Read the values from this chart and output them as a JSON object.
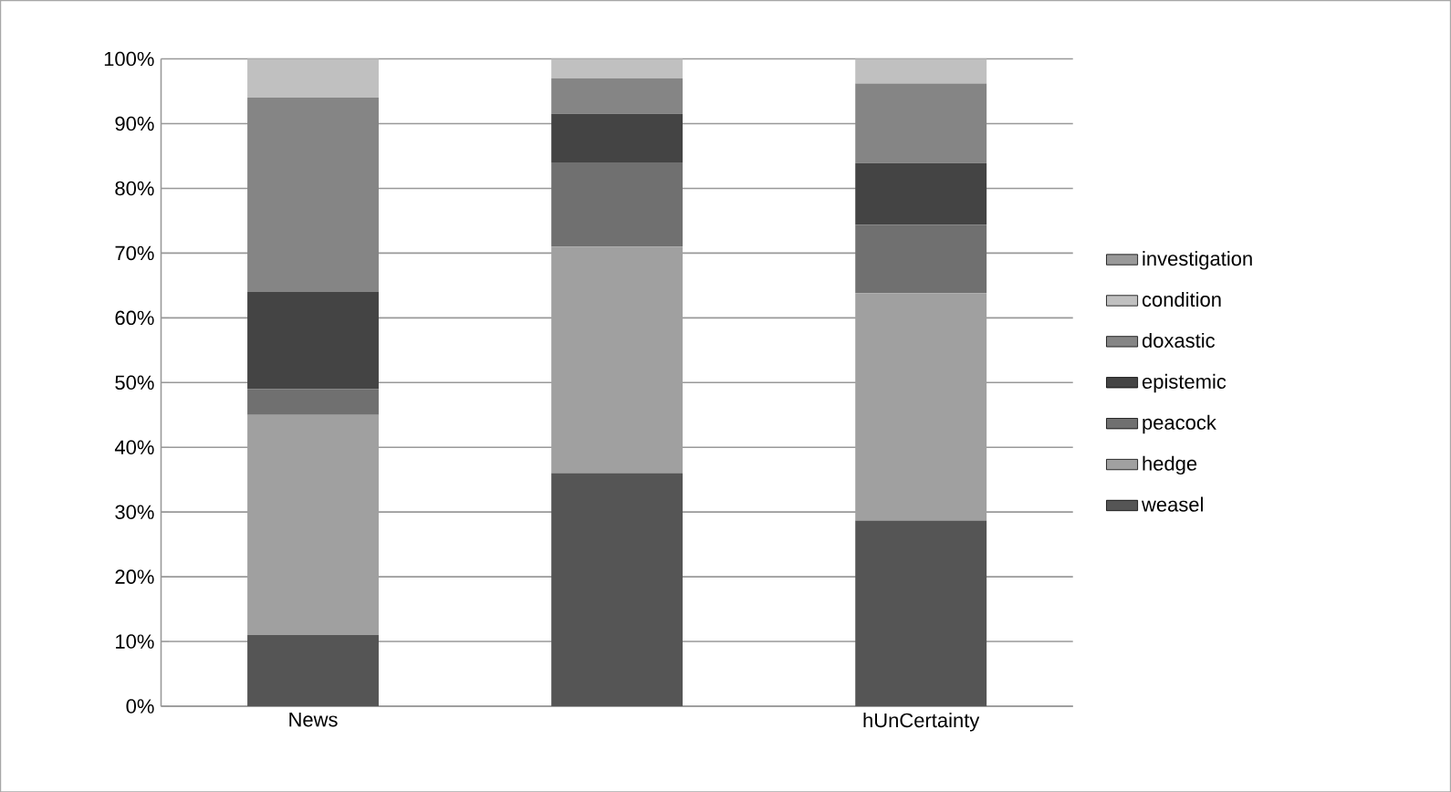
{
  "chart_data": {
    "type": "bar",
    "stacked": true,
    "categories": [
      "News",
      null,
      "hUnCertainty"
    ],
    "series": [
      {
        "name": "weasel",
        "color": "#555555",
        "values": [
          11,
          36,
          28.7
        ]
      },
      {
        "name": "hedge",
        "color": "#a0a0a0",
        "values": [
          34,
          35,
          35.1
        ]
      },
      {
        "name": "peacock",
        "color": "#707070",
        "values": [
          4,
          13,
          10.6
        ]
      },
      {
        "name": "epistemic",
        "color": "#444444",
        "values": [
          15,
          7.5,
          9.5
        ]
      },
      {
        "name": "doxastic",
        "color": "#858585",
        "values": [
          30,
          5.5,
          12.3
        ]
      },
      {
        "name": "condition",
        "color": "#c0c0c0",
        "values": [
          6,
          3,
          3.8
        ]
      },
      {
        "name": "investigation",
        "color": "#999999",
        "values": [
          0,
          0,
          0
        ]
      }
    ],
    "ylim": [
      0,
      100
    ],
    "yticks": [
      {
        "value": 0,
        "label": "0%"
      },
      {
        "value": 10,
        "label": "10%"
      },
      {
        "value": 20,
        "label": "20%"
      },
      {
        "value": 30,
        "label": "30%"
      },
      {
        "value": 40,
        "label": "40%"
      },
      {
        "value": 50,
        "label": "50%"
      },
      {
        "value": 60,
        "label": "60%"
      },
      {
        "value": 70,
        "label": "70%"
      },
      {
        "value": 80,
        "label": "80%"
      },
      {
        "value": 90,
        "label": "90%"
      },
      {
        "value": 100,
        "label": "100%"
      }
    ],
    "grid": "y",
    "legend": "right"
  }
}
